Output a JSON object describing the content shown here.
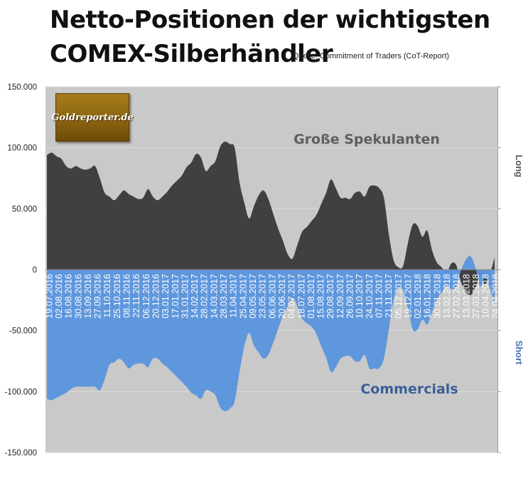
{
  "title_line1": "Netto-Positionen der wichtigsten",
  "title_line2": "COMEX-Silberhändler",
  "source": "Quelle: Commitment of Traders (CoT-Report)",
  "logo_text": "Goldreporter.de",
  "colors": {
    "plot_bg": "#c9c9c9",
    "speculators": "#404040",
    "commercials": "#5b95dd",
    "date_text": "#ffffff"
  },
  "chart_data": {
    "type": "area",
    "title": "Netto-Positionen der wichtigsten COMEX-Silberhändler",
    "ylim": [
      -150000,
      150000
    ],
    "y_ticks": [
      "150.000",
      "100.000",
      "50.000",
      "0",
      "-50.000",
      "-100.000",
      "-150.000"
    ],
    "y_tick_values": [
      150000,
      100000,
      50000,
      0,
      -50000,
      -100000,
      -150000
    ],
    "right_labels": {
      "upper": "Long",
      "lower": "Short"
    },
    "grid": true,
    "annotations": {
      "speculators": "Große Spekulanten",
      "commercials": "Commercials"
    },
    "x_tick_labels": [
      "19.07.2016",
      "02.08.2016",
      "16.08.2016",
      "30.08.2016",
      "13.09.2016",
      "27.09.2016",
      "11.10.2016",
      "25.10.2016",
      "08.11.2016",
      "22.11.2016",
      "06.12.2016",
      "20.12.2016",
      "03.01.2017",
      "17.01.2017",
      "31.01.2017",
      "14.02.2017",
      "28.02.2017",
      "14.03.2017",
      "28.03.2017",
      "11.04.2017",
      "25.04.2017",
      "09.05.2017",
      "23.05.2017",
      "06.06.2017",
      "20.06.2017",
      "04.07.2017",
      "18.07.2017",
      "01.08.2017",
      "15.08.2017",
      "29.08.2017",
      "12.09.2017",
      "26.09.2017",
      "10.10.2017",
      "24.10.2017",
      "07.11.2017",
      "21.11.2017",
      "05.12.2017",
      "19.12.2017",
      "02.01.2018",
      "16.01.2018",
      "30.01.2018",
      "13.02.2018",
      "27.02.2018",
      "13.03.2018",
      "27.03.2018",
      "10.04.2018",
      "24.04.2018"
    ],
    "series": [
      {
        "name": "Große Spekulanten",
        "values": [
          94000,
          96000,
          93000,
          91000,
          85000,
          83000,
          85000,
          83000,
          82000,
          83000,
          85000,
          75000,
          63000,
          60000,
          57000,
          61000,
          65000,
          62000,
          60000,
          58000,
          59000,
          66000,
          60000,
          57000,
          60000,
          64000,
          69000,
          73000,
          77000,
          84000,
          88000,
          95000,
          92000,
          81000,
          85000,
          89000,
          101000,
          105000,
          103000,
          100000,
          72000,
          55000,
          42000,
          52000,
          61000,
          65000,
          58000,
          46000,
          34000,
          24000,
          13000,
          9000,
          20000,
          31000,
          35000,
          40000,
          45000,
          54000,
          63000,
          74000,
          67000,
          59000,
          59000,
          58000,
          63000,
          64000,
          60000,
          68000,
          69000,
          67000,
          59000,
          30000,
          8000,
          2000,
          3000,
          22000,
          37000,
          36000,
          27000,
          32000,
          16000,
          6000,
          2000,
          -3000,
          5000,
          4000,
          -10000,
          -18000,
          -21000,
          -15000,
          -6000,
          -12000,
          -4000,
          10000
        ]
      },
      {
        "name": "Commercials",
        "values": [
          -106000,
          -107000,
          -105000,
          -103000,
          -101000,
          -98000,
          -96000,
          -96000,
          -96000,
          -96000,
          -96000,
          -99000,
          -90000,
          -78000,
          -76000,
          -73000,
          -76000,
          -81000,
          -78000,
          -77000,
          -77000,
          -80000,
          -73000,
          -73000,
          -77000,
          -80000,
          -84000,
          -88000,
          -92000,
          -96000,
          -101000,
          -103000,
          -106000,
          -99000,
          -100000,
          -103000,
          -113000,
          -116000,
          -114000,
          -108000,
          -84000,
          -63000,
          -52000,
          -62000,
          -68000,
          -73000,
          -70000,
          -60000,
          -49000,
          -38000,
          -30000,
          -23000,
          -30000,
          -40000,
          -44000,
          -47000,
          -53000,
          -63000,
          -72000,
          -84000,
          -80000,
          -73000,
          -71000,
          -71000,
          -75000,
          -75000,
          -70000,
          -81000,
          -81000,
          -81000,
          -73000,
          -50000,
          -25000,
          -16000,
          -17000,
          -32000,
          -49000,
          -49000,
          -41000,
          -45000,
          -35000,
          -25000,
          -19000,
          -13000,
          -16000,
          -14000,
          -1000,
          8000,
          11000,
          2000,
          -14000,
          -6000,
          -15000,
          -28000
        ]
      }
    ]
  }
}
